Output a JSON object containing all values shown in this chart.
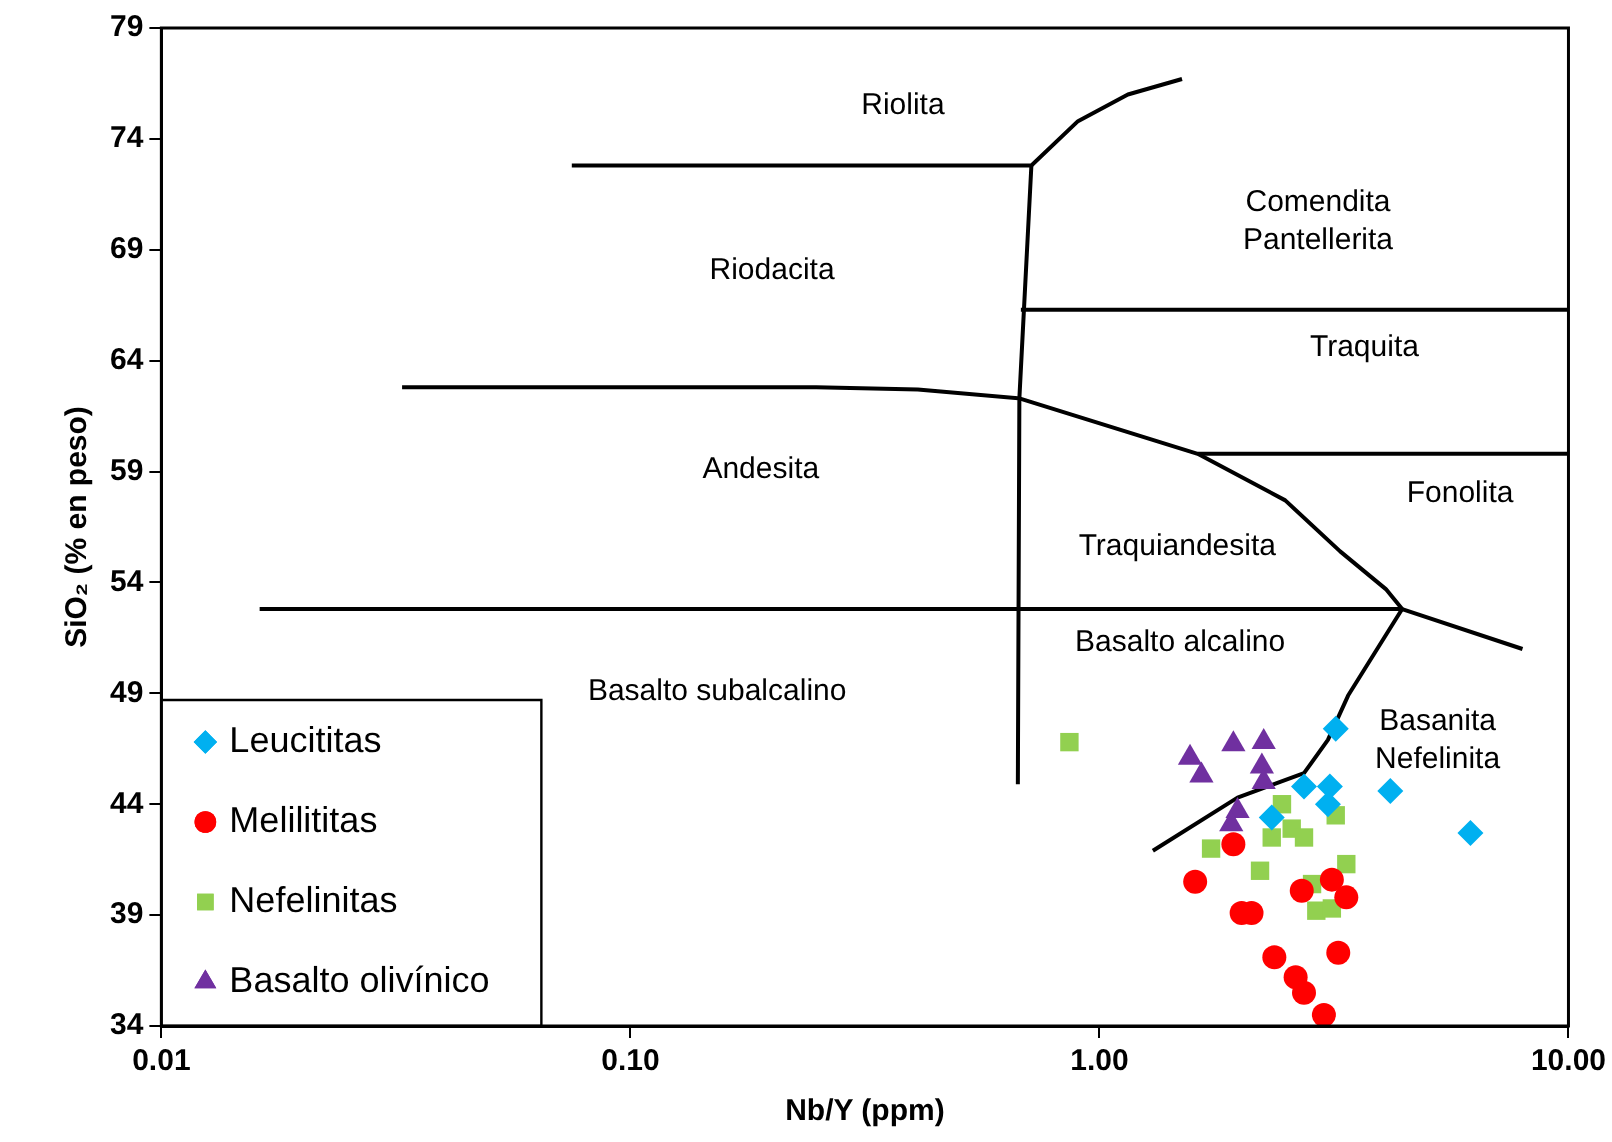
{
  "chart_data": {
    "type": "scatter",
    "xlabel": "Nb/Y (ppm)",
    "ylabel": "SiO₂ (% en peso)",
    "log": "x",
    "xlim": [
      0.01,
      10
    ],
    "xticks": [
      0.01,
      {
        "value": 0.1,
        "label": "0.10"
      },
      {
        "value": 1,
        "label": "1.00"
      },
      {
        "value": 10,
        "label": "10.00"
      }
    ],
    "ylim": [
      34,
      79
    ],
    "yticks": [
      34,
      39,
      44,
      49,
      54,
      59,
      64,
      69,
      74,
      79
    ],
    "legend": "bottom left",
    "series": [
      {
        "name": "Leucititas",
        "color": "#00b0f0",
        "marker": "diamond",
        "x": [
          3.19,
          2.73,
          3.1,
          4.17,
          6.18,
          3.07,
          2.33
        ],
        "values": [
          47.4,
          44.8,
          44.8,
          44.6,
          42.7,
          44.0,
          43.4
        ]
      },
      {
        "name": "Melilititas",
        "color": "#ff0000",
        "marker": "circle",
        "x": [
          1.93,
          1.6,
          2.01,
          2.11,
          2.7,
          3.13,
          3.36,
          3.23,
          2.36,
          2.62,
          2.73,
          3.01
        ],
        "values": [
          42.2,
          40.5,
          39.1,
          39.1,
          40.1,
          40.6,
          39.8,
          37.3,
          37.1,
          36.2,
          35.5,
          34.5
        ]
      },
      {
        "name": "Nefelinitas",
        "color": "#92d050",
        "marker": "square",
        "x": [
          0.863,
          1.73,
          2.45,
          2.33,
          2.57,
          2.73,
          3.19,
          2.2,
          2.84,
          3.36,
          2.9,
          3.13
        ],
        "values": [
          46.8,
          42.0,
          44.0,
          42.5,
          42.9,
          42.5,
          43.5,
          41.0,
          40.4,
          41.3,
          39.2,
          39.3
        ]
      },
      {
        "name": "Basalto olivínico",
        "color": "#7030a0",
        "marker": "triangle",
        "x": [
          1.56,
          1.65,
          1.93,
          2.24,
          2.22,
          2.24,
          1.97,
          1.91
        ],
        "values": [
          46.1,
          45.3,
          46.7,
          46.8,
          45.7,
          45.0,
          43.7,
          43.1
        ]
      },
      {
        "type": "line",
        "color": "#000000",
        "marker": "none",
        "x": [
          0.075,
          0.716,
          0.9,
          1.15,
          1.5
        ],
        "values": [
          72.8,
          72.8,
          74.8,
          76.0,
          76.7
        ]
      },
      {
        "type": "line",
        "color": "#000000",
        "marker": "none",
        "x": [
          0.716,
          0.675,
          0.67
        ],
        "values": [
          72.8,
          62.3,
          44.9
        ]
      },
      {
        "type": "line",
        "color": "#000000",
        "marker": "none",
        "x": [
          0.68,
          10
        ],
        "values": [
          66.3,
          66.3
        ]
      },
      {
        "type": "line",
        "color": "#000000",
        "marker": "none",
        "x": [
          0.0326,
          0.249,
          0.41,
          0.675,
          1.62,
          2.49,
          3.26,
          4.08,
          4.42
        ],
        "values": [
          62.8,
          62.8,
          62.7,
          62.3,
          59.8,
          57.7,
          55.4,
          53.7,
          52.8
        ]
      },
      {
        "type": "line",
        "color": "#000000",
        "marker": "none",
        "x": [
          1.62,
          10
        ],
        "values": [
          59.8,
          59.8
        ]
      },
      {
        "type": "line",
        "color": "#000000",
        "marker": "none",
        "x": [
          0.0162,
          4.42,
          7.98
        ],
        "values": [
          52.8,
          52.8,
          51.0
        ]
      },
      {
        "type": "line",
        "color": "#000000",
        "marker": "none",
        "x": [
          4.42,
          3.39,
          3.07,
          2.73,
          1.97,
          1.3
        ],
        "values": [
          52.8,
          48.9,
          46.9,
          45.4,
          44.3,
          41.9
        ]
      }
    ],
    "annotations": [
      "Riolita",
      "Comendita\nPantellerita",
      "Riodacita",
      "Traquita",
      "Andesita",
      "Fonolita",
      "Traquiandesita",
      "Basalto alcalino",
      "Basalto subalcalino",
      "Basanita\nNefelinita"
    ]
  }
}
